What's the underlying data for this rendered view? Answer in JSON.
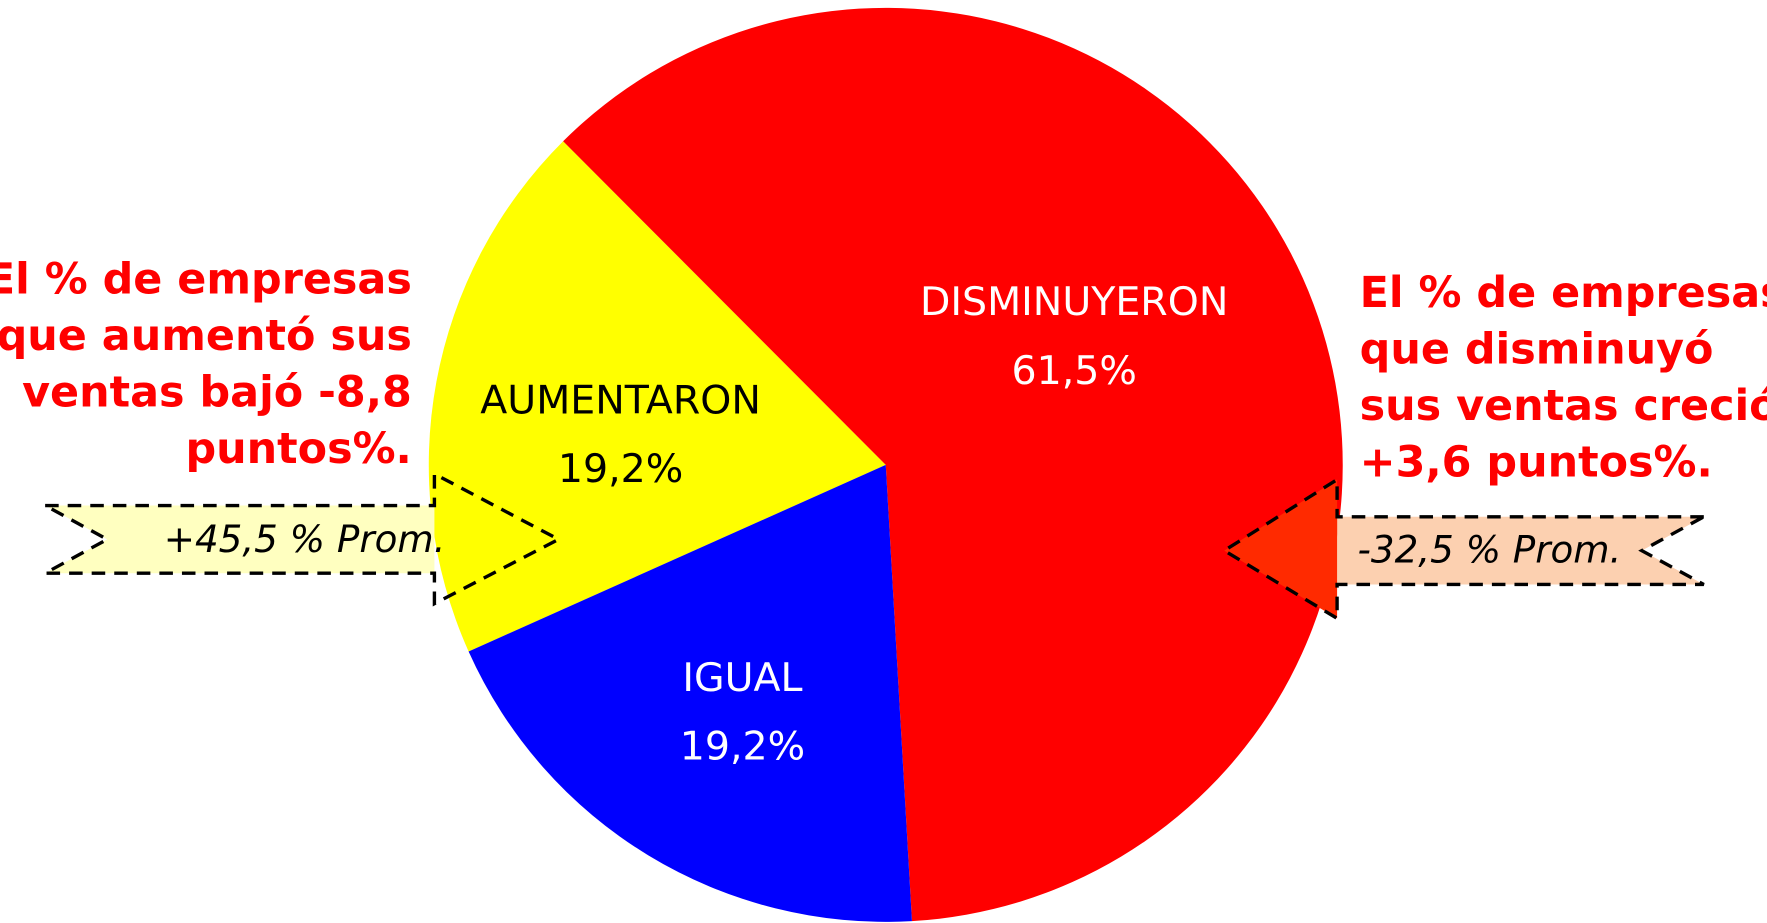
{
  "chart_data": {
    "type": "pie",
    "categories": [
      "AUMENTARON",
      "DISMINUYERON",
      "IGUAL"
    ],
    "values": [
      19.2,
      61.5,
      19.2
    ],
    "value_labels": [
      "19,2%",
      "61,5%",
      "19,2%"
    ],
    "colors": [
      "#ffff00",
      "#ff0000",
      "#0000ff"
    ],
    "annotations": [
      {
        "lines": [
          "El % de empresas",
          "que aumentó sus",
          "ventas bajó -8,8",
          "puntos%."
        ],
        "callout": "+45,5 % Prom."
      },
      {
        "lines": [
          "El % de empresas",
          "que disminuyó",
          "sus ventas creció",
          "+3,6 puntos%."
        ],
        "callout": "-32,5 % Prom."
      }
    ]
  }
}
